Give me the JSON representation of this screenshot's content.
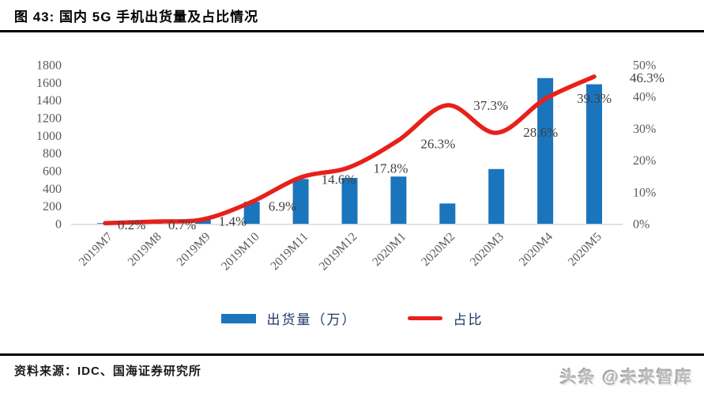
{
  "figure": {
    "title": "图 43: 国内 5G 手机出货量及占比情况",
    "source_label": "资料来源：IDC、国海证券研究所",
    "watermark": "头条 @未来智库"
  },
  "chart_data": {
    "type": "bar+line",
    "title": "国内 5G 手机出货量及占比情况",
    "categories": [
      "2019M7",
      "2019M8",
      "2019M9",
      "2019M10",
      "2019M11",
      "2019M12",
      "2020M1",
      "2020M2",
      "2020M3",
      "2020M4",
      "2020M5"
    ],
    "series": [
      {
        "name": "出货量（万）",
        "chart": "bar",
        "y_axis": "left",
        "color": "#1B75BC",
        "values": [
          7,
          22,
          50,
          249,
          507,
          520,
          535,
          230,
          620,
          1650,
          1580
        ]
      },
      {
        "name": "占比",
        "chart": "line",
        "y_axis": "right",
        "color": "#E8201A",
        "values": [
          0.2,
          0.7,
          1.4,
          6.9,
          14.6,
          17.8,
          26.3,
          37.3,
          28.6,
          39.3,
          46.3
        ],
        "point_labels": [
          "0.2%",
          "0.7%",
          "1.4%",
          "6.9%",
          "14.6%",
          "17.8%",
          "26.3%",
          "37.3%",
          "28.6%",
          "39.3%",
          "46.3%"
        ]
      }
    ],
    "left_axis": {
      "min": 0,
      "max": 1800,
      "step": 200,
      "tick_labels": [
        "0",
        "200",
        "400",
        "600",
        "800",
        "1000",
        "1200",
        "1400",
        "1600",
        "1800"
      ]
    },
    "right_axis": {
      "min": 0,
      "max": 50,
      "step": 10,
      "tick_labels": [
        "0%",
        "10%",
        "20%",
        "30%",
        "40%",
        "50%"
      ]
    },
    "grid": false,
    "legend_position": "bottom",
    "colors": {
      "bar": "#1B75BC",
      "line": "#E8201A",
      "axis_line": "#d9d9d9",
      "tick_text": "#595959",
      "point_label_text": "#404040"
    }
  }
}
